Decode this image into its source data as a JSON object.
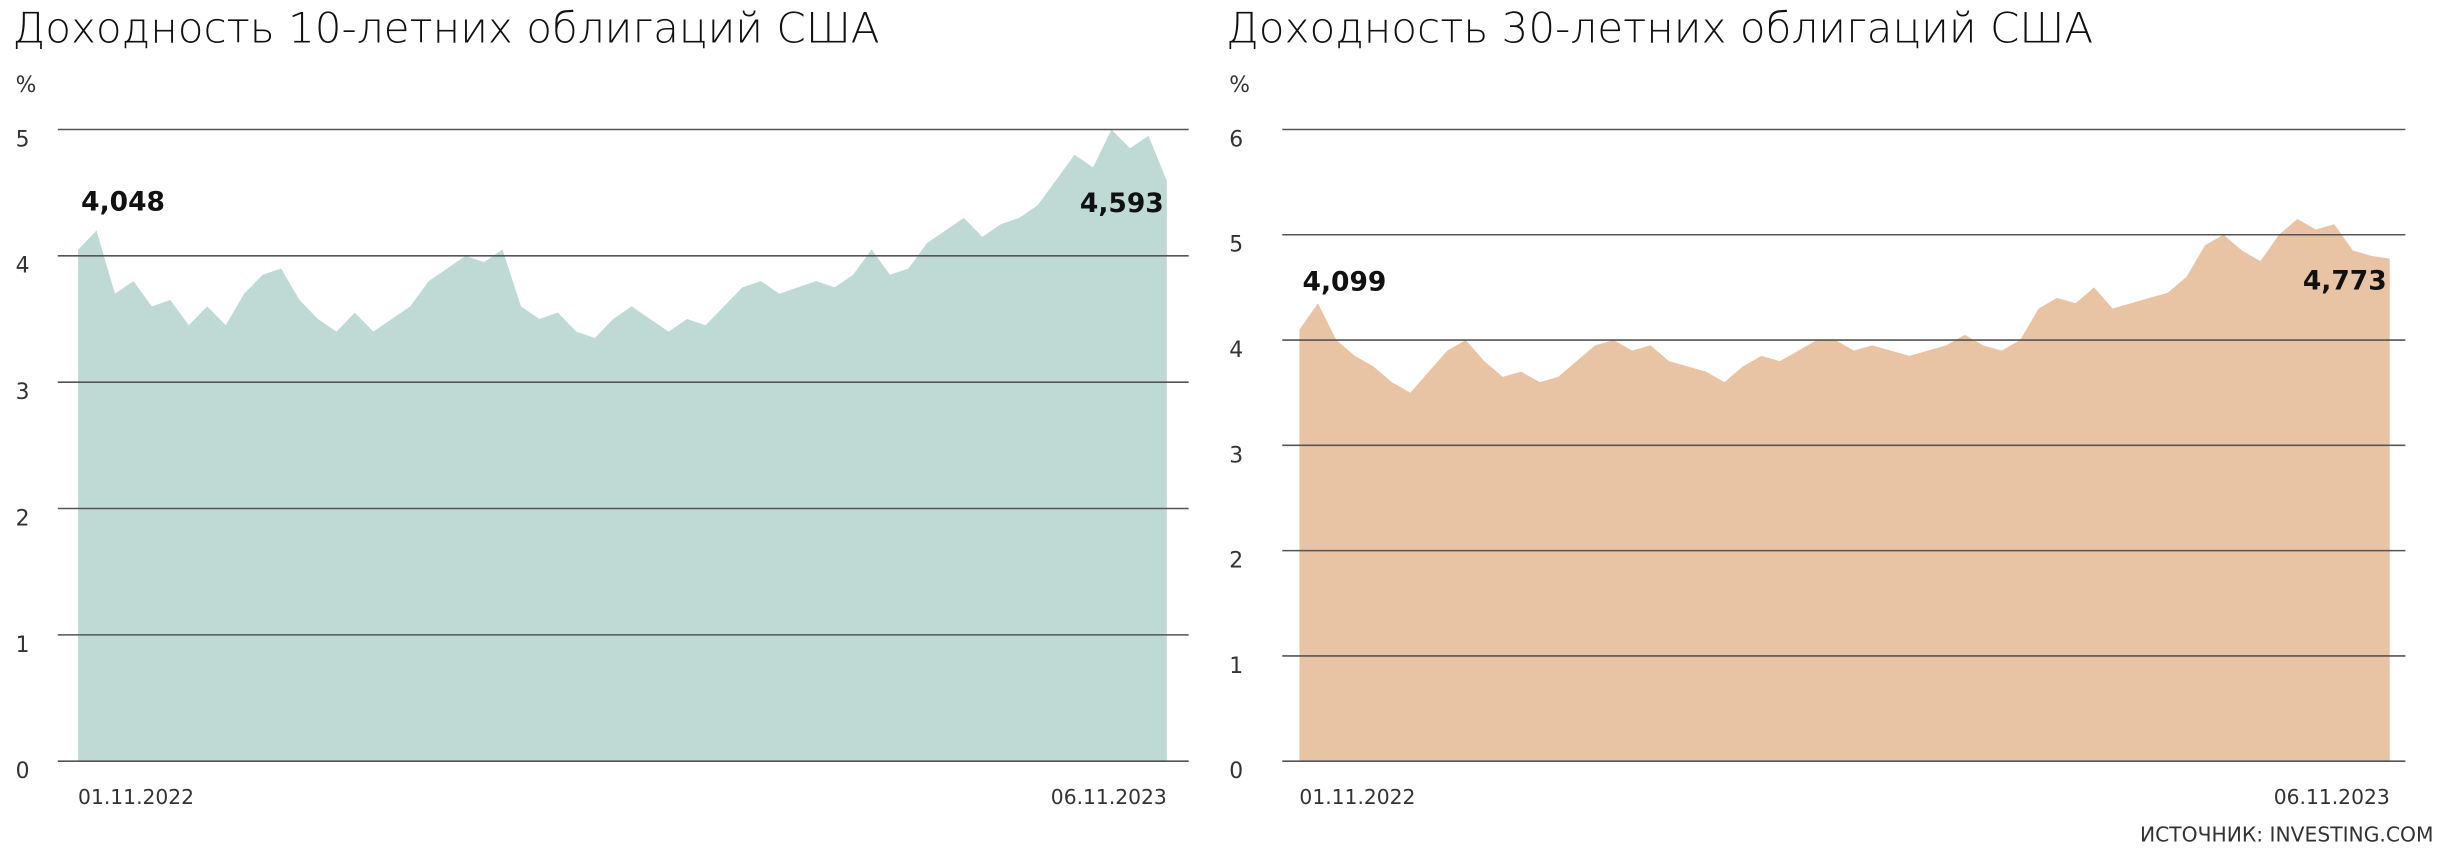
{
  "chart_data": [
    {
      "type": "area",
      "title": "Доходность 10-летних облигаций США",
      "y_label": "%",
      "color": "#bfd9d4",
      "categories": [
        "01.11.2022",
        null,
        null,
        null,
        null,
        null,
        null,
        null,
        null,
        null,
        null,
        null,
        null,
        null,
        null,
        null,
        null,
        null,
        null,
        null,
        null,
        null,
        null,
        null,
        null,
        null,
        null,
        null,
        null,
        null,
        null,
        null,
        null,
        null,
        null,
        null,
        null,
        null,
        null,
        null,
        null,
        null,
        null,
        null,
        null,
        null,
        null,
        null,
        null,
        null,
        null,
        null,
        null,
        null,
        null,
        null,
        null,
        null,
        null,
        "06.11.2023"
      ],
      "values": [
        4.048,
        4.2,
        3.7,
        3.8,
        3.6,
        3.65,
        3.45,
        3.6,
        3.45,
        3.7,
        3.85,
        3.9,
        3.65,
        3.5,
        3.4,
        3.55,
        3.4,
        3.5,
        3.6,
        3.8,
        3.9,
        4.0,
        3.95,
        4.05,
        3.6,
        3.5,
        3.55,
        3.4,
        3.35,
        3.5,
        3.6,
        3.5,
        3.4,
        3.5,
        3.45,
        3.6,
        3.75,
        3.8,
        3.7,
        3.75,
        3.8,
        3.75,
        3.85,
        4.05,
        3.85,
        3.9,
        4.1,
        4.2,
        4.3,
        4.15,
        4.25,
        4.3,
        4.4,
        4.6,
        4.8,
        4.7,
        5.0,
        4.85,
        4.95,
        4.593
      ],
      "value_labels": [
        "4,048",
        null,
        null,
        null,
        null,
        null,
        null,
        null,
        null,
        null,
        null,
        null,
        null,
        null,
        null,
        null,
        null,
        null,
        null,
        null,
        null,
        null,
        null,
        null,
        null,
        null,
        null,
        null,
        null,
        null,
        null,
        null,
        null,
        null,
        null,
        null,
        null,
        null,
        null,
        null,
        null,
        null,
        null,
        null,
        null,
        null,
        null,
        null,
        null,
        null,
        null,
        null,
        null,
        null,
        null,
        null,
        null,
        null,
        null,
        "4,593"
      ],
      "ylim": [
        0,
        5
      ],
      "yticks": [
        0,
        1,
        2,
        3,
        4,
        5
      ]
    },
    {
      "type": "area",
      "title": "Доходность 30-летних облигаций США",
      "y_label": "%",
      "color": "#e8c4a4",
      "categories": [
        "01.11.2022",
        null,
        null,
        null,
        null,
        null,
        null,
        null,
        null,
        null,
        null,
        null,
        null,
        null,
        null,
        null,
        null,
        null,
        null,
        null,
        null,
        null,
        null,
        null,
        null,
        null,
        null,
        null,
        null,
        null,
        null,
        null,
        null,
        null,
        null,
        null,
        null,
        null,
        null,
        null,
        null,
        null,
        null,
        null,
        null,
        null,
        null,
        null,
        null,
        null,
        null,
        null,
        null,
        null,
        null,
        null,
        null,
        null,
        null,
        "06.11.2023"
      ],
      "values": [
        4.099,
        4.35,
        4.0,
        3.85,
        3.75,
        3.6,
        3.5,
        3.7,
        3.9,
        4.0,
        3.8,
        3.65,
        3.7,
        3.6,
        3.65,
        3.8,
        3.95,
        4.0,
        3.9,
        3.95,
        3.8,
        3.75,
        3.7,
        3.6,
        3.75,
        3.85,
        3.8,
        3.9,
        4.0,
        4.0,
        3.9,
        3.95,
        3.9,
        3.85,
        3.9,
        3.95,
        4.05,
        3.95,
        3.9,
        4.0,
        4.3,
        4.4,
        4.35,
        4.5,
        4.3,
        4.35,
        4.4,
        4.45,
        4.6,
        4.9,
        5.0,
        4.85,
        4.75,
        5.0,
        5.15,
        5.05,
        5.1,
        4.85,
        4.8,
        4.773
      ],
      "value_labels": [
        "4,099",
        null,
        null,
        null,
        null,
        null,
        null,
        null,
        null,
        null,
        null,
        null,
        null,
        null,
        null,
        null,
        null,
        null,
        null,
        null,
        null,
        null,
        null,
        null,
        null,
        null,
        null,
        null,
        null,
        null,
        null,
        null,
        null,
        null,
        null,
        null,
        null,
        null,
        null,
        null,
        null,
        null,
        null,
        null,
        null,
        null,
        null,
        null,
        null,
        null,
        null,
        null,
        null,
        null,
        null,
        null,
        null,
        null,
        null,
        "4,773"
      ],
      "ylim": [
        0,
        6
      ],
      "yticks": [
        0,
        1,
        2,
        3,
        4,
        5,
        6
      ]
    }
  ],
  "source": "ИСТОЧНИК: INVESTING.COM"
}
